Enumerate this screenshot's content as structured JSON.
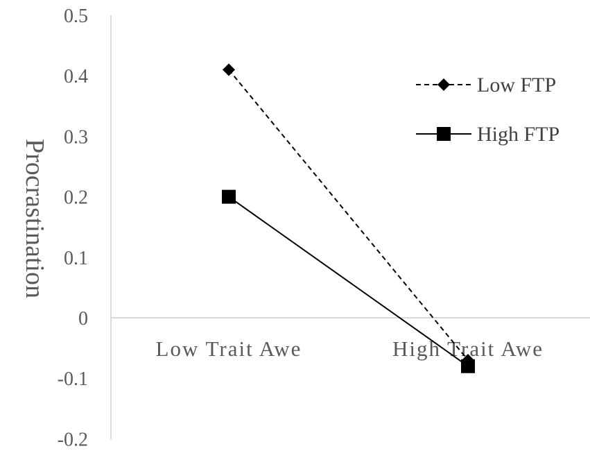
{
  "chart_data": {
    "type": "line",
    "categories": [
      "Low Trait Awe",
      "High Trait Awe"
    ],
    "series": [
      {
        "name": "Low FTP",
        "values": [
          0.41,
          -0.07
        ],
        "line_style": "dashed",
        "marker": "diamond",
        "color": "#000000"
      },
      {
        "name": "High FTP",
        "values": [
          0.2,
          -0.08
        ],
        "line_style": "solid",
        "marker": "square",
        "color": "#000000"
      }
    ],
    "yticks": [
      "0.5",
      "0.4",
      "0.3",
      "0.2",
      "0.1",
      "0",
      "-0.1",
      "-0.2"
    ],
    "ytick_values": [
      0.5,
      0.4,
      0.3,
      0.2,
      0.1,
      0,
      -0.1,
      -0.2
    ],
    "ylabel": "Procrastination",
    "xlabel": "",
    "title": "",
    "ylim": [
      -0.2,
      0.5
    ],
    "grid": false,
    "legend_position": "top-right",
    "axis_color": "#d9d9d9"
  }
}
